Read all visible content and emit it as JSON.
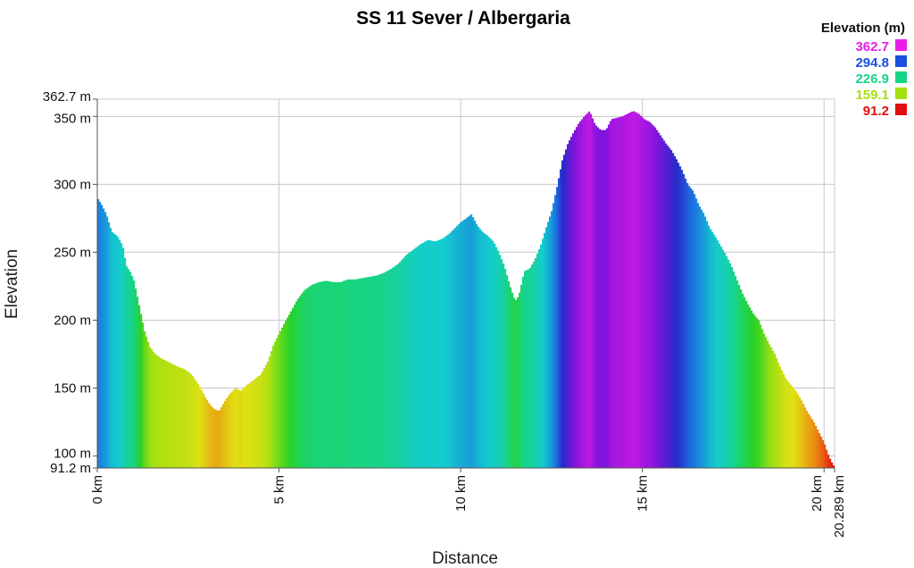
{
  "chart_data": {
    "type": "area",
    "title": "SS 11 Sever / Albergaria",
    "xlabel": "Distance",
    "ylabel": "Elevation",
    "xlim": [
      0,
      20.289
    ],
    "ylim": [
      91.2,
      362.7
    ],
    "x_ticks": [
      {
        "value": 0,
        "label": "0 km"
      },
      {
        "value": 5,
        "label": "5 km"
      },
      {
        "value": 10,
        "label": "10 km"
      },
      {
        "value": 15,
        "label": "15 km"
      },
      {
        "value": 20,
        "label": "20 km"
      },
      {
        "value": 20.289,
        "label": "20.289 km"
      }
    ],
    "y_ticks": [
      {
        "value": 362.7,
        "label": "362.7 m"
      },
      {
        "value": 350,
        "label": "350 m"
      },
      {
        "value": 300,
        "label": "300 m"
      },
      {
        "value": 250,
        "label": "250 m"
      },
      {
        "value": 200,
        "label": "200 m"
      },
      {
        "value": 150,
        "label": "150 m"
      },
      {
        "value": 100,
        "label": "100 m"
      },
      {
        "value": 91.2,
        "label": "91.2 m"
      }
    ],
    "grid": true,
    "color_scale": "elevation gradient (red low → magenta high)",
    "legend": {
      "title": "Elevation (m)",
      "placement": "top-right",
      "entries": [
        {
          "label": "362.7",
          "color": "#e81ee8"
        },
        {
          "label": "294.8",
          "color": "#1a4fe0"
        },
        {
          "label": "226.9",
          "color": "#18d487"
        },
        {
          "label": "159.1",
          "color": "#a6e010"
        },
        {
          "label": "91.2",
          "color": "#e01010"
        }
      ]
    },
    "x": [
      0,
      0.1,
      0.25,
      0.4,
      0.55,
      0.7,
      0.8,
      0.9,
      1.0,
      1.1,
      1.2,
      1.3,
      1.45,
      1.6,
      1.75,
      1.9,
      2.05,
      2.2,
      2.4,
      2.6,
      2.8,
      3.0,
      3.1,
      3.2,
      3.35,
      3.5,
      3.65,
      3.8,
      3.95,
      4.1,
      4.3,
      4.5,
      4.7,
      4.85,
      5.0,
      5.15,
      5.3,
      5.5,
      5.7,
      5.9,
      6.1,
      6.3,
      6.5,
      6.7,
      6.9,
      7.1,
      7.3,
      7.5,
      7.7,
      7.9,
      8.1,
      8.3,
      8.5,
      8.7,
      8.9,
      9.1,
      9.3,
      9.5,
      9.7,
      9.85,
      10.0,
      10.1,
      10.2,
      10.3,
      10.45,
      10.6,
      10.75,
      10.9,
      11.05,
      11.2,
      11.35,
      11.5,
      11.6,
      11.75,
      11.9,
      12.05,
      12.2,
      12.35,
      12.5,
      12.65,
      12.8,
      12.95,
      13.1,
      13.25,
      13.4,
      13.55,
      13.7,
      13.85,
      14.0,
      14.15,
      14.3,
      14.45,
      14.6,
      14.75,
      14.9,
      15.05,
      15.2,
      15.35,
      15.5,
      15.65,
      15.8,
      15.95,
      16.1,
      16.25,
      16.4,
      16.55,
      16.7,
      16.85,
      17.0,
      17.15,
      17.3,
      17.45,
      17.6,
      17.75,
      17.9,
      18.05,
      18.2,
      18.35,
      18.5,
      18.65,
      18.8,
      18.95,
      19.1,
      19.25,
      19.4,
      19.55,
      19.7,
      19.85,
      20.0,
      20.1,
      20.2,
      20.289
    ],
    "y": [
      290,
      286,
      278,
      265,
      262,
      255,
      240,
      236,
      230,
      218,
      205,
      192,
      180,
      175,
      172,
      170,
      168,
      166,
      164,
      160,
      152,
      142,
      138,
      135,
      133,
      140,
      146,
      150,
      148,
      152,
      156,
      160,
      170,
      182,
      190,
      198,
      205,
      215,
      222,
      226,
      228,
      229,
      228,
      228,
      230,
      230,
      231,
      232,
      233,
      235,
      238,
      242,
      248,
      252,
      256,
      259,
      258,
      260,
      264,
      268,
      272,
      274,
      276,
      278,
      270,
      265,
      262,
      258,
      250,
      240,
      226,
      214,
      218,
      236,
      238,
      245,
      255,
      268,
      280,
      298,
      318,
      330,
      338,
      345,
      350,
      354,
      344,
      340,
      340,
      348,
      349,
      350,
      352,
      354,
      352,
      348,
      346,
      342,
      336,
      330,
      325,
      318,
      310,
      300,
      295,
      285,
      278,
      268,
      262,
      255,
      248,
      240,
      230,
      220,
      212,
      205,
      200,
      190,
      182,
      175,
      165,
      157,
      152,
      147,
      140,
      132,
      126,
      118,
      110,
      102,
      96,
      92
    ]
  }
}
